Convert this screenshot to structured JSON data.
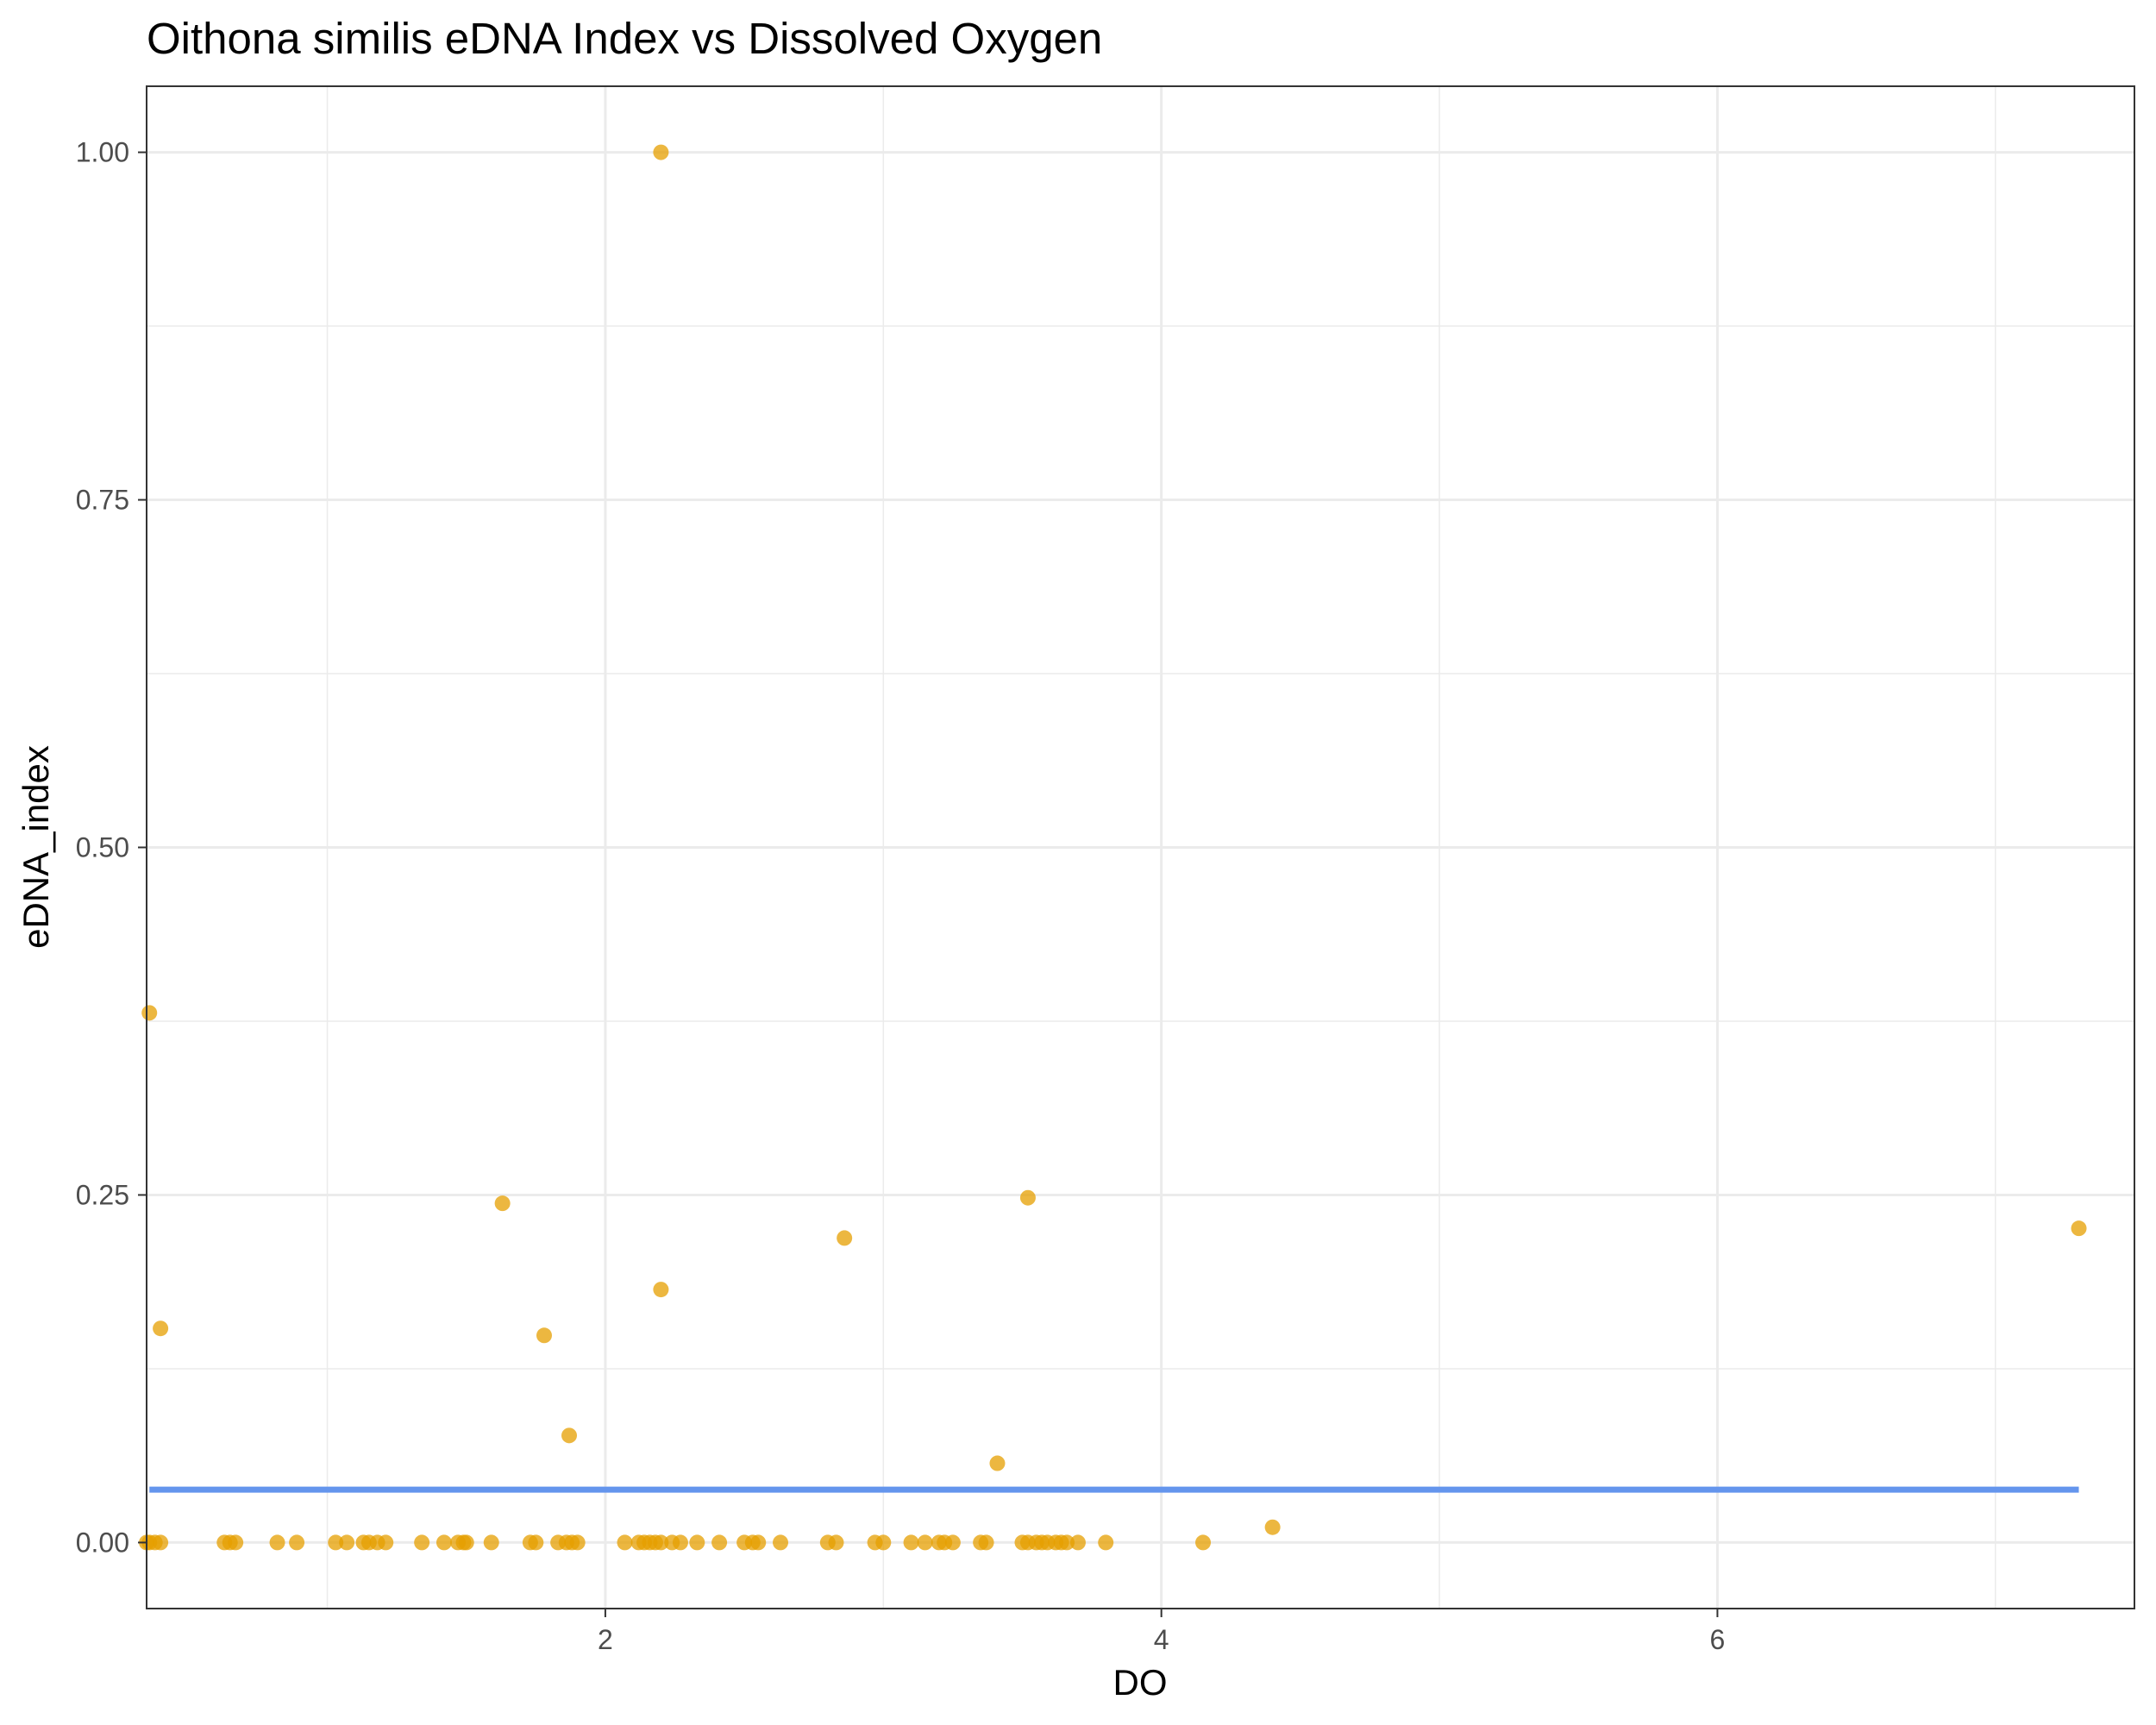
{
  "chart_data": {
    "type": "scatter",
    "title": "Oithona similis eDNA Index vs Dissolved Oxygen",
    "xlabel": "DO",
    "ylabel": "eDNA_index",
    "xlim": [
      0.35,
      7.5
    ],
    "ylim": [
      -0.0475,
      1.0475
    ],
    "x_ticks": [
      2,
      4,
      6
    ],
    "x_tick_labels": [
      "2",
      "4",
      "6"
    ],
    "x_minor_ticks": [
      1,
      3,
      5,
      7
    ],
    "y_ticks": [
      0.0,
      0.25,
      0.5,
      0.75,
      1.0
    ],
    "y_tick_labels": [
      "0.00",
      "0.25",
      "0.50",
      "0.75",
      "1.00"
    ],
    "y_minor_ticks": [
      0.125,
      0.375,
      0.625,
      0.875
    ],
    "grid": true,
    "legend": "none",
    "colors": {
      "points": "#E69F00",
      "trend_line": "#6495ED",
      "grid": "#ebebeb",
      "panel_border": "#333333"
    },
    "series": [
      {
        "marker": "circle",
        "x": [
          0.35,
          0.36,
          0.38,
          0.4,
          0.63,
          0.65,
          0.67,
          0.82,
          0.89,
          1.03,
          1.07,
          1.13,
          1.15,
          1.18,
          1.21,
          1.34,
          1.42,
          1.47,
          1.49,
          1.5,
          1.59,
          1.73,
          1.75,
          1.83,
          1.86,
          1.88,
          1.9,
          2.07,
          2.12,
          2.14,
          2.16,
          2.18,
          2.2,
          2.24,
          2.27,
          2.33,
          2.41,
          2.5,
          2.53,
          2.55,
          2.63,
          2.8,
          2.83,
          2.97,
          3.0,
          3.1,
          3.15,
          3.2,
          3.22,
          3.25,
          3.35,
          3.37,
          3.5,
          3.52,
          3.55,
          3.57,
          3.59,
          3.62,
          3.64,
          3.66,
          3.7,
          3.8,
          4.15,
          0.36,
          0.4,
          1.63,
          1.78,
          1.87,
          2.2,
          2.2,
          2.86,
          3.41,
          3.52,
          4.4,
          7.3
        ],
        "y": [
          0,
          0,
          0,
          0,
          0,
          0,
          0,
          0,
          0,
          0,
          0,
          0,
          0,
          0,
          0,
          0,
          0,
          0,
          0,
          0,
          0,
          0,
          0,
          0,
          0,
          0,
          0,
          0,
          0,
          0,
          0,
          0,
          0,
          0,
          0,
          0,
          0,
          0,
          0,
          0,
          0,
          0,
          0,
          0,
          0,
          0,
          0,
          0,
          0,
          0,
          0,
          0,
          0,
          0,
          0,
          0,
          0,
          0,
          0,
          0,
          0,
          0,
          0,
          0.381,
          0.154,
          0.244,
          0.149,
          0.077,
          1.0,
          0.182,
          0.219,
          0.057,
          0.248,
          0.011,
          0.226
        ]
      }
    ],
    "trend_line": {
      "x": [
        0.36,
        7.3
      ],
      "y": [
        0.038,
        0.038
      ]
    }
  }
}
